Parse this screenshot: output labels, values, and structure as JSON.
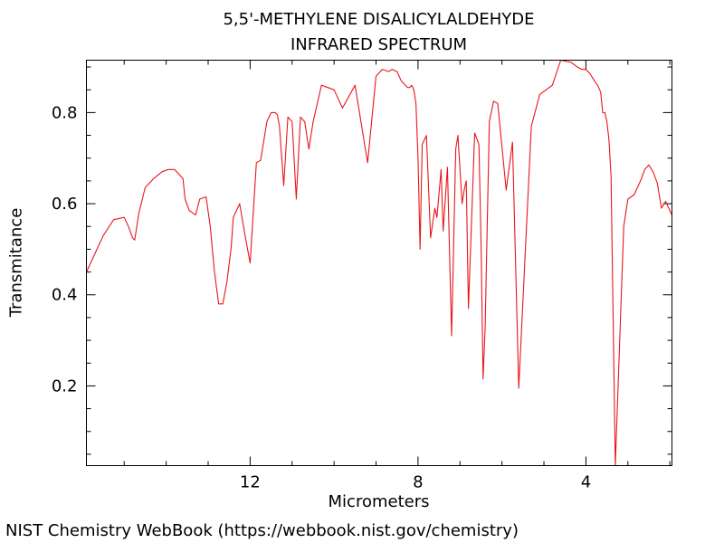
{
  "chart_data": {
    "type": "line",
    "title_lines": [
      "5,5'-METHYLENE DISALICYLALDEHYDE",
      "INFRARED SPECTRUM"
    ],
    "xlabel": "Micrometers",
    "ylabel": "Transmitance",
    "xlim": [
      15.9,
      1.95
    ],
    "ylim": [
      0.025,
      0.915
    ],
    "x_ticks": [
      12,
      8,
      4
    ],
    "x_tick_labels": [
      "12",
      "8",
      "4"
    ],
    "y_ticks": [
      0.2,
      0.4,
      0.6,
      0.8
    ],
    "y_tick_labels": [
      "0.2",
      "0.4",
      "0.6",
      "0.8"
    ],
    "grid": false,
    "series": [
      {
        "color": "#e8161b",
        "x": [
          15.9,
          15.75,
          15.5,
          15.25,
          15.0,
          14.9,
          14.8,
          14.75,
          14.65,
          14.5,
          14.3,
          14.1,
          13.95,
          13.8,
          13.6,
          13.55,
          13.45,
          13.3,
          13.2,
          13.05,
          12.95,
          12.85,
          12.75,
          12.65,
          12.55,
          12.45,
          12.4,
          12.25,
          12.1,
          12.0,
          11.85,
          11.75,
          11.6,
          11.5,
          11.4,
          11.35,
          11.3,
          11.2,
          11.1,
          11.0,
          10.9,
          10.8,
          10.7,
          10.6,
          10.5,
          10.3,
          10.0,
          9.8,
          9.5,
          9.2,
          9.0,
          8.85,
          8.7,
          8.62,
          8.5,
          8.4,
          8.35,
          8.3,
          8.25,
          8.2,
          8.15,
          8.1,
          8.05,
          8.0,
          7.95,
          7.9,
          7.8,
          7.7,
          7.6,
          7.55,
          7.45,
          7.4,
          7.3,
          7.2,
          7.1,
          7.05,
          6.95,
          6.9,
          6.85,
          6.8,
          6.65,
          6.55,
          6.5,
          6.45,
          6.4,
          6.3,
          6.2,
          6.1,
          5.9,
          5.75,
          5.6,
          5.3,
          5.1,
          4.8,
          4.6,
          4.35,
          4.2,
          4.1,
          4.0,
          3.9,
          3.8,
          3.72,
          3.65,
          3.6,
          3.55,
          3.5,
          3.45,
          3.4,
          3.3,
          3.1,
          3.0,
          2.85,
          2.7,
          2.6,
          2.5,
          2.4,
          2.3,
          2.2,
          2.1,
          1.95
        ],
        "y": [
          0.45,
          0.48,
          0.53,
          0.565,
          0.57,
          0.55,
          0.525,
          0.52,
          0.58,
          0.635,
          0.655,
          0.67,
          0.675,
          0.675,
          0.655,
          0.61,
          0.585,
          0.575,
          0.61,
          0.615,
          0.55,
          0.45,
          0.38,
          0.38,
          0.43,
          0.505,
          0.57,
          0.6,
          0.52,
          0.47,
          0.69,
          0.695,
          0.78,
          0.8,
          0.8,
          0.795,
          0.77,
          0.64,
          0.79,
          0.78,
          0.61,
          0.79,
          0.78,
          0.72,
          0.78,
          0.86,
          0.85,
          0.81,
          0.86,
          0.69,
          0.88,
          0.895,
          0.89,
          0.895,
          0.89,
          0.87,
          0.865,
          0.86,
          0.855,
          0.855,
          0.86,
          0.85,
          0.82,
          0.7,
          0.5,
          0.73,
          0.75,
          0.525,
          0.59,
          0.57,
          0.675,
          0.54,
          0.68,
          0.31,
          0.72,
          0.75,
          0.6,
          0.63,
          0.65,
          0.37,
          0.755,
          0.73,
          0.52,
          0.215,
          0.33,
          0.78,
          0.825,
          0.82,
          0.63,
          0.735,
          0.195,
          0.77,
          0.84,
          0.86,
          0.915,
          0.91,
          0.9,
          0.895,
          0.895,
          0.885,
          0.87,
          0.86,
          0.845,
          0.8,
          0.8,
          0.78,
          0.74,
          0.66,
          0.025,
          0.55,
          0.61,
          0.62,
          0.65,
          0.675,
          0.685,
          0.67,
          0.645,
          0.59,
          0.605,
          0.575
        ]
      }
    ]
  },
  "credit": "NIST Chemistry WebBook (https://webbook.nist.gov/chemistry)"
}
